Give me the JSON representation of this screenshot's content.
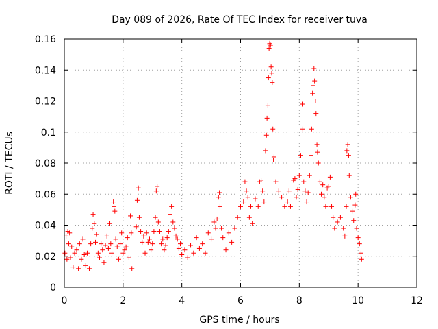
{
  "chart_data": {
    "type": "scatter",
    "title": "Day 089 of 2026, Rate Of TEC Index for receiver tuva",
    "xlabel": "GPS time / hours",
    "ylabel": "ROTI / TECUs",
    "xlim": [
      0,
      12
    ],
    "ylim": [
      0,
      0.16
    ],
    "xticks": [
      0,
      2,
      4,
      6,
      8,
      10,
      12
    ],
    "yticks": [
      0,
      0.02,
      0.04,
      0.06,
      0.08,
      0.1,
      0.12,
      0.14,
      0.16
    ],
    "xtick_labels": [
      "0",
      "2",
      "4",
      "6",
      "8",
      "10",
      "12"
    ],
    "ytick_labels": [
      "0",
      "0.02",
      "0.04",
      "0.06",
      "0.08",
      "0.1",
      "0.12",
      "0.14",
      "0.16"
    ],
    "grid": true,
    "marker": "plus",
    "color": "#ff0000",
    "series": [
      {
        "name": "ROTI",
        "points": [
          [
            0.02,
            0.022
          ],
          [
            0.06,
            0.033
          ],
          [
            0.09,
            0.018
          ],
          [
            0.12,
            0.036
          ],
          [
            0.15,
            0.028
          ],
          [
            0.18,
            0.035
          ],
          [
            0.21,
            0.019
          ],
          [
            0.25,
            0.026
          ],
          [
            0.3,
            0.013
          ],
          [
            0.35,
            0.022
          ],
          [
            0.42,
            0.024
          ],
          [
            0.48,
            0.012
          ],
          [
            0.52,
            0.028
          ],
          [
            0.58,
            0.018
          ],
          [
            0.63,
            0.031
          ],
          [
            0.68,
            0.021
          ],
          [
            0.73,
            0.014
          ],
          [
            0.78,
            0.022
          ],
          [
            0.85,
            0.012
          ],
          [
            0.9,
            0.028
          ],
          [
            0.95,
            0.038
          ],
          [
            0.98,
            0.047
          ],
          [
            1.02,
            0.041
          ],
          [
            1.06,
            0.029
          ],
          [
            1.1,
            0.034
          ],
          [
            1.15,
            0.022
          ],
          [
            1.2,
            0.019
          ],
          [
            1.25,
            0.028
          ],
          [
            1.3,
            0.024
          ],
          [
            1.35,
            0.016
          ],
          [
            1.4,
            0.027
          ],
          [
            1.45,
            0.033
          ],
          [
            1.5,
            0.025
          ],
          [
            1.55,
            0.041
          ],
          [
            1.58,
            0.028
          ],
          [
            1.62,
            0.022
          ],
          [
            1.67,
            0.055
          ],
          [
            1.69,
            0.052
          ],
          [
            1.72,
            0.049
          ],
          [
            1.75,
            0.031
          ],
          [
            1.8,
            0.026
          ],
          [
            1.85,
            0.018
          ],
          [
            1.9,
            0.028
          ],
          [
            1.95,
            0.035
          ],
          [
            2.0,
            0.022
          ],
          [
            2.05,
            0.024
          ],
          [
            2.1,
            0.026
          ],
          [
            2.15,
            0.032
          ],
          [
            2.2,
            0.019
          ],
          [
            2.25,
            0.046
          ],
          [
            2.28,
            0.035
          ],
          [
            2.3,
            0.012
          ],
          [
            2.45,
            0.039
          ],
          [
            2.48,
            0.056
          ],
          [
            2.52,
            0.064
          ],
          [
            2.55,
            0.045
          ],
          [
            2.6,
            0.036
          ],
          [
            2.65,
            0.029
          ],
          [
            2.7,
            0.033
          ],
          [
            2.75,
            0.022
          ],
          [
            2.8,
            0.035
          ],
          [
            2.85,
            0.029
          ],
          [
            2.9,
            0.031
          ],
          [
            2.95,
            0.024
          ],
          [
            3.0,
            0.028
          ],
          [
            3.05,
            0.036
          ],
          [
            3.1,
            0.045
          ],
          [
            3.13,
            0.062
          ],
          [
            3.16,
            0.065
          ],
          [
            3.2,
            0.042
          ],
          [
            3.25,
            0.036
          ],
          [
            3.3,
            0.028
          ],
          [
            3.35,
            0.031
          ],
          [
            3.4,
            0.024
          ],
          [
            3.45,
            0.027
          ],
          [
            3.5,
            0.032
          ],
          [
            3.55,
            0.036
          ],
          [
            3.6,
            0.047
          ],
          [
            3.65,
            0.052
          ],
          [
            3.7,
            0.042
          ],
          [
            3.75,
            0.038
          ],
          [
            3.8,
            0.033
          ],
          [
            3.85,
            0.031
          ],
          [
            3.9,
            0.025
          ],
          [
            3.95,
            0.028
          ],
          [
            4.0,
            0.021
          ],
          [
            4.1,
            0.024
          ],
          [
            4.2,
            0.019
          ],
          [
            4.3,
            0.027
          ],
          [
            4.4,
            0.022
          ],
          [
            4.5,
            0.032
          ],
          [
            4.6,
            0.025
          ],
          [
            4.7,
            0.028
          ],
          [
            4.8,
            0.022
          ],
          [
            4.9,
            0.035
          ],
          [
            5.0,
            0.031
          ],
          [
            5.1,
            0.042
          ],
          [
            5.15,
            0.038
          ],
          [
            5.2,
            0.044
          ],
          [
            5.25,
            0.058
          ],
          [
            5.28,
            0.061
          ],
          [
            5.3,
            0.052
          ],
          [
            5.35,
            0.038
          ],
          [
            5.4,
            0.032
          ],
          [
            5.5,
            0.024
          ],
          [
            5.6,
            0.035
          ],
          [
            5.7,
            0.029
          ],
          [
            5.8,
            0.038
          ],
          [
            5.9,
            0.045
          ],
          [
            6.0,
            0.052
          ],
          [
            6.1,
            0.055
          ],
          [
            6.15,
            0.068
          ],
          [
            6.2,
            0.062
          ],
          [
            6.25,
            0.058
          ],
          [
            6.3,
            0.045
          ],
          [
            6.35,
            0.052
          ],
          [
            6.4,
            0.041
          ],
          [
            6.5,
            0.057
          ],
          [
            6.6,
            0.052
          ],
          [
            6.65,
            0.068
          ],
          [
            6.7,
            0.069
          ],
          [
            6.75,
            0.062
          ],
          [
            6.8,
            0.055
          ],
          [
            6.85,
            0.088
          ],
          [
            6.88,
            0.098
          ],
          [
            6.9,
            0.109
          ],
          [
            6.93,
            0.117
          ],
          [
            6.95,
            0.135
          ],
          [
            6.97,
            0.154
          ],
          [
            6.99,
            0.157
          ],
          [
            7.0,
            0.158
          ],
          [
            7.02,
            0.156
          ],
          [
            7.04,
            0.142
          ],
          [
            7.06,
            0.138
          ],
          [
            7.08,
            0.132
          ],
          [
            7.1,
            0.102
          ],
          [
            7.12,
            0.082
          ],
          [
            7.14,
            0.084
          ],
          [
            7.2,
            0.068
          ],
          [
            7.3,
            0.062
          ],
          [
            7.4,
            0.058
          ],
          [
            7.5,
            0.052
          ],
          [
            7.6,
            0.055
          ],
          [
            7.65,
            0.062
          ],
          [
            7.7,
            0.052
          ],
          [
            7.8,
            0.069
          ],
          [
            7.85,
            0.07
          ],
          [
            7.9,
            0.058
          ],
          [
            7.95,
            0.063
          ],
          [
            8.0,
            0.072
          ],
          [
            8.05,
            0.085
          ],
          [
            8.1,
            0.102
          ],
          [
            8.12,
            0.118
          ],
          [
            8.15,
            0.068
          ],
          [
            8.2,
            0.062
          ],
          [
            8.25,
            0.055
          ],
          [
            8.3,
            0.061
          ],
          [
            8.35,
            0.072
          ],
          [
            8.4,
            0.085
          ],
          [
            8.42,
            0.102
          ],
          [
            8.45,
            0.125
          ],
          [
            8.47,
            0.13
          ],
          [
            8.5,
            0.141
          ],
          [
            8.52,
            0.133
          ],
          [
            8.55,
            0.12
          ],
          [
            8.57,
            0.112
          ],
          [
            8.6,
            0.092
          ],
          [
            8.62,
            0.087
          ],
          [
            8.65,
            0.08
          ],
          [
            8.7,
            0.068
          ],
          [
            8.75,
            0.06
          ],
          [
            8.8,
            0.066
          ],
          [
            8.85,
            0.058
          ],
          [
            8.9,
            0.052
          ],
          [
            8.95,
            0.064
          ],
          [
            9.0,
            0.065
          ],
          [
            9.05,
            0.071
          ],
          [
            9.1,
            0.052
          ],
          [
            9.15,
            0.045
          ],
          [
            9.2,
            0.038
          ],
          [
            9.3,
            0.042
          ],
          [
            9.4,
            0.045
          ],
          [
            9.5,
            0.038
          ],
          [
            9.55,
            0.033
          ],
          [
            9.6,
            0.052
          ],
          [
            9.62,
            0.088
          ],
          [
            9.65,
            0.092
          ],
          [
            9.68,
            0.085
          ],
          [
            9.7,
            0.072
          ],
          [
            9.75,
            0.058
          ],
          [
            9.8,
            0.049
          ],
          [
            9.85,
            0.043
          ],
          [
            9.9,
            0.053
          ],
          [
            9.92,
            0.06
          ],
          [
            9.95,
            0.038
          ],
          [
            10.0,
            0.032
          ],
          [
            10.05,
            0.028
          ],
          [
            10.1,
            0.022
          ],
          [
            10.12,
            0.018
          ]
        ]
      }
    ]
  }
}
